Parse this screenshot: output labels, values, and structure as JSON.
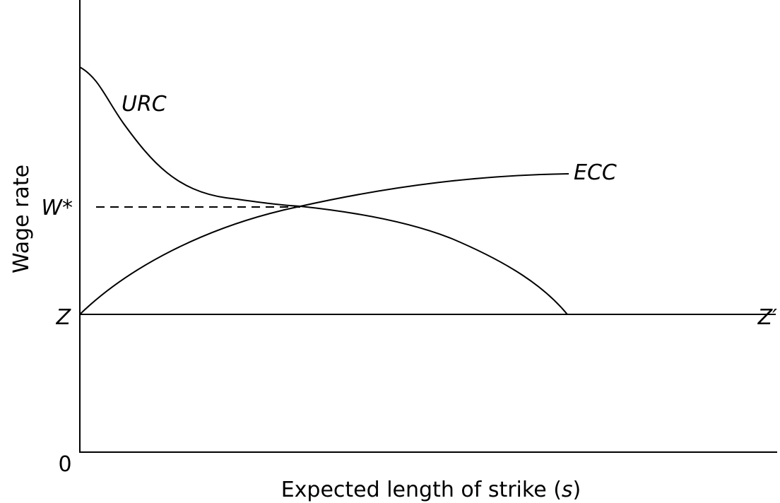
{
  "diagram": {
    "y_axis_label": "Wage rate",
    "x_axis_label": {
      "before": "Expected length of strike (",
      "variable": "s",
      "after": ")"
    },
    "origin_label": "0",
    "curves": {
      "urc": "URC",
      "ecc": "ECC"
    },
    "levels": {
      "w_star": "W*",
      "z": "Z",
      "z_prime": "Z′"
    }
  }
}
